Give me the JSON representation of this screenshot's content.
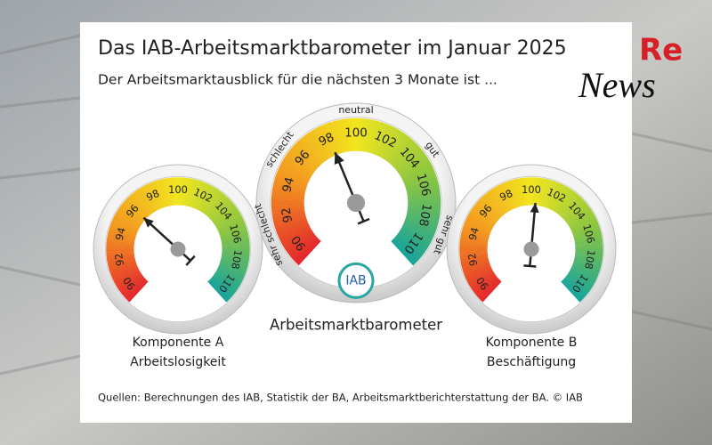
{
  "title": "Das IAB-Arbeitsmarktbarometer im Januar 2025",
  "subtitle": "Der Arbeitsmarktausblick für die nächsten 3 Monate ist ...",
  "source": "Quellen: Berechnungen des IAB, Statistik der BA, Arbeitsmarktberichterstattung der BA. © IAB",
  "logo": {
    "re": "Re",
    "news": "News"
  },
  "chart_data": [
    {
      "type": "gauge",
      "label": "Komponente A",
      "sublabel": "Arbeitslosigkeit",
      "value": 96.2,
      "ylim": [
        89,
        111
      ],
      "yticks": [
        90,
        92,
        94,
        96,
        98,
        100,
        102,
        104,
        106,
        108,
        110
      ],
      "colors": [
        "#e3262b",
        "#f39a1e",
        "#f2e51d",
        "#8cc63f",
        "#16a39a"
      ]
    },
    {
      "type": "gauge",
      "label": "Arbeitsmarktbarometer",
      "value": 98.2,
      "ylim": [
        89,
        111
      ],
      "yticks": [
        90,
        92,
        94,
        96,
        98,
        100,
        102,
        104,
        106,
        108,
        110
      ],
      "colors": [
        "#e3262b",
        "#f39a1e",
        "#f2e51d",
        "#8cc63f",
        "#16a39a"
      ],
      "zones": [
        "sehr schlecht",
        "schlecht",
        "neutral",
        "gut",
        "sehr gut"
      ],
      "badge": "IAB"
    },
    {
      "type": "gauge",
      "label": "Komponente B",
      "sublabel": "Beschäftigung",
      "value": 100.4,
      "ylim": [
        89,
        111
      ],
      "yticks": [
        90,
        92,
        94,
        96,
        98,
        100,
        102,
        104,
        106,
        108,
        110
      ],
      "colors": [
        "#e3262b",
        "#f39a1e",
        "#f2e51d",
        "#8cc63f",
        "#16a39a"
      ]
    }
  ]
}
